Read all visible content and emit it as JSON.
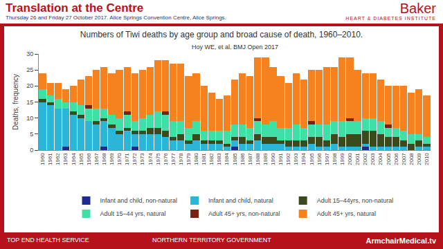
{
  "header": {
    "title": "Translation at the Centre",
    "date": "Thursday 26 and Friday 27 October 2017. Alice Springs Convention Centre, Alice Springs.",
    "brand": "Baker",
    "brand_subtitle": "HEART & DIABETES INSTITUTE"
  },
  "footer": {
    "left": "TOP END HEALTH SERVICE",
    "middle": "NORTHERN TERRITORY GOVERNMENT",
    "right": "ArmchairMedical.tv"
  },
  "chart_data": {
    "type": "bar",
    "stacked": true,
    "title": "Numbers of Tiwi deaths by age group and broad cause of death, 1960–2010.",
    "subtitle": "Hoy WE, et al. BMJ Open 2017",
    "y_label": "Deaths, frequency",
    "ylim": [
      0,
      30
    ],
    "yticks": [
      0,
      5,
      10,
      15,
      20,
      25,
      30
    ],
    "grid": false,
    "legend": "bottom",
    "categories": [
      "1960",
      "1961",
      "1962",
      "1963",
      "1964",
      "1965",
      "1966",
      "1967",
      "1968",
      "1969",
      "1970",
      "1971",
      "1972",
      "1973",
      "1974",
      "1975",
      "1976",
      "1977",
      "1978",
      "1979",
      "1980",
      "1981",
      "1982",
      "1983",
      "1984",
      "1985",
      "1986",
      "1987",
      "1988",
      "1989",
      "1990",
      "1991",
      "1992",
      "1993",
      "1994",
      "1995",
      "1996",
      "1997",
      "1998",
      "1999",
      "2000",
      "2001",
      "2002",
      "2003",
      "2004",
      "2005",
      "2006",
      "2007",
      "2008",
      "2009",
      "2010"
    ],
    "series": [
      {
        "name": "Infant and child, non-natural",
        "color": "#1f2a8f",
        "values": [
          0,
          0,
          0,
          1,
          0,
          0,
          0,
          0,
          1,
          0,
          0,
          0,
          1,
          0,
          0,
          0,
          0,
          0,
          0,
          0,
          0,
          0,
          0,
          0,
          0,
          1,
          0,
          0,
          0,
          0,
          0,
          0,
          0,
          0,
          0,
          0,
          0,
          0,
          0,
          0,
          0,
          0,
          1,
          0,
          0,
          0,
          0,
          0,
          0,
          0,
          0
        ]
      },
      {
        "name": "Infant and child, natural",
        "color": "#2bb5d6",
        "values": [
          15,
          14,
          13,
          12,
          11,
          10,
          9,
          8,
          8,
          7,
          5,
          6,
          4,
          5,
          5,
          5,
          4,
          3,
          3,
          2,
          3,
          2,
          2,
          2,
          1,
          2,
          2,
          2,
          3,
          2,
          2,
          2,
          1,
          1,
          1,
          2,
          1,
          1,
          2,
          1,
          1,
          1,
          1,
          1,
          1,
          1,
          1,
          1,
          0,
          1,
          1
        ]
      },
      {
        "name": "Adult 15–44yrs, non-natural",
        "color": "#3b4a1c",
        "values": [
          1,
          1,
          0,
          0,
          1,
          1,
          0,
          1,
          1,
          1,
          1,
          1,
          1,
          1,
          2,
          2,
          2,
          1,
          2,
          1,
          2,
          1,
          1,
          1,
          1,
          1,
          2,
          1,
          2,
          2,
          2,
          1,
          2,
          2,
          2,
          2,
          3,
          2,
          3,
          3,
          4,
          4,
          4,
          5,
          4,
          3,
          3,
          2,
          2,
          2,
          1
        ]
      },
      {
        "name": "Adult 15–44 yrs, natural",
        "color": "#3fe0a6",
        "values": [
          3,
          2,
          3,
          2,
          3,
          3,
          4,
          4,
          3,
          3,
          4,
          4,
          3,
          4,
          4,
          5,
          5,
          5,
          4,
          4,
          4,
          3,
          3,
          3,
          4,
          4,
          4,
          4,
          4,
          4,
          5,
          4,
          4,
          5,
          4,
          4,
          4,
          5,
          4,
          5,
          4,
          4,
          4,
          4,
          4,
          3,
          3,
          3,
          3,
          2,
          2
        ]
      },
      {
        "name": "Adult 45+ yrs, non-natural",
        "color": "#7a2212",
        "values": [
          0,
          0,
          0,
          0,
          0,
          0,
          1,
          0,
          0,
          0,
          0,
          1,
          0,
          0,
          0,
          0,
          1,
          0,
          0,
          0,
          0,
          0,
          0,
          0,
          0,
          0,
          0,
          0,
          1,
          0,
          0,
          0,
          0,
          0,
          0,
          1,
          0,
          0,
          0,
          0,
          1,
          0,
          0,
          0,
          0,
          1,
          0,
          0,
          0,
          0,
          0
        ]
      },
      {
        "name": "Adult 45+ yrs, natural",
        "color": "#f5821f",
        "values": [
          5,
          4,
          5,
          4,
          5,
          8,
          9,
          12,
          13,
          13,
          15,
          14,
          15,
          15,
          15,
          16,
          16,
          18,
          18,
          16,
          15,
          14,
          12,
          10,
          11,
          14,
          16,
          16,
          19,
          21,
          17,
          16,
          14,
          16,
          15,
          16,
          17,
          18,
          17,
          20,
          19,
          16,
          14,
          14,
          13,
          12,
          13,
          14,
          13,
          14,
          13
        ]
      }
    ]
  }
}
